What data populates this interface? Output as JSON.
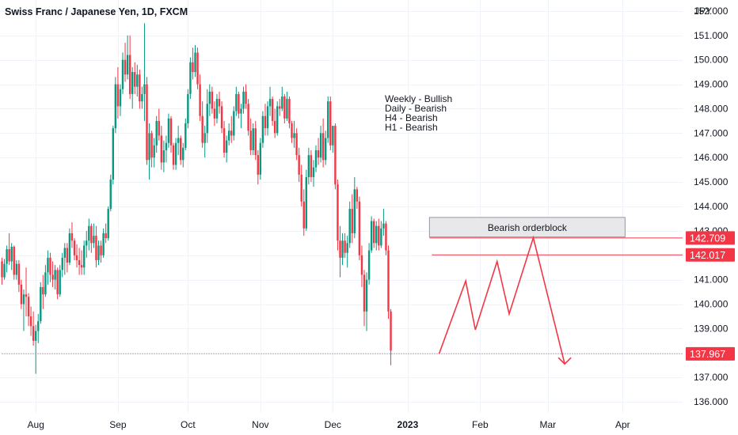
{
  "header": {
    "title": "Swiss Franc / Japanese Yen, 1D, FXCM"
  },
  "chart_data": {
    "type": "candlestick",
    "ylabel": "JPY",
    "ylim": [
      135.55,
      152.45
    ],
    "y_ticks": [
      "152.000",
      "151.000",
      "150.000",
      "149.000",
      "148.000",
      "147.000",
      "146.000",
      "145.000",
      "144.000",
      "143.000",
      "142.000",
      "141.000",
      "140.000",
      "139.000",
      "138.000",
      "137.000",
      "136.000"
    ],
    "x_ticks": [
      {
        "label": "Aug",
        "bar": 14,
        "bold": false
      },
      {
        "label": "Sep",
        "bar": 48,
        "bold": false
      },
      {
        "label": "Oct",
        "bar": 77,
        "bold": false
      },
      {
        "label": "Nov",
        "bar": 107,
        "bold": false
      },
      {
        "label": "Dec",
        "bar": 137,
        "bold": false
      },
      {
        "label": "2023",
        "bar": 168,
        "bold": true
      },
      {
        "label": "Feb",
        "bar": 198,
        "bold": false
      },
      {
        "label": "Mar",
        "bar": 226,
        "bold": false
      },
      {
        "label": "Apr",
        "bar": 257,
        "bold": false
      }
    ],
    "annotations": [
      "Weekly - Bullish",
      "Daily - Bearish",
      "H4 - Bearish",
      "H1 - Bearish"
    ],
    "zone": {
      "label": "Bearish orderblock",
      "top": 143.55,
      "bottom": 142.75,
      "from_bar": 177,
      "to_bar": 258
    },
    "levels": [
      {
        "label": "142.709",
        "value": 142.709,
        "from_bar": 177,
        "style": "solid"
      },
      {
        "label": "142.017",
        "value": 142.017,
        "from_bar": 178,
        "style": "solid"
      },
      {
        "label": "137.967",
        "value": 137.967,
        "from_bar": 0,
        "style": "dotted"
      }
    ],
    "projection": [
      [
        181,
        137.97
      ],
      [
        192,
        140.95
      ],
      [
        196,
        138.95
      ],
      [
        205,
        141.75
      ],
      [
        210,
        139.6
      ],
      [
        220,
        142.72
      ],
      [
        233,
        137.55
      ]
    ],
    "colors": {
      "up": "#089981",
      "down": "#f23645",
      "grid": "#f0f3fa",
      "text": "#131722"
    },
    "candles": [
      [
        141.75,
        141.9,
        140.8,
        141.1
      ],
      [
        141.1,
        141.85,
        141.0,
        141.65
      ],
      [
        141.65,
        142.4,
        141.3,
        142.25
      ],
      [
        142.25,
        142.9,
        141.6,
        141.75
      ],
      [
        141.75,
        142.5,
        141.4,
        142.35
      ],
      [
        142.35,
        142.4,
        141.0,
        141.2
      ],
      [
        141.2,
        141.8,
        141.0,
        141.65
      ],
      [
        141.65,
        141.8,
        140.5,
        140.8
      ],
      [
        140.8,
        141.0,
        139.8,
        140.0
      ],
      [
        140.0,
        140.6,
        138.9,
        140.4
      ],
      [
        140.4,
        141.5,
        139.5,
        140.3
      ],
      [
        140.3,
        140.45,
        139.1,
        139.5
      ],
      [
        139.5,
        139.9,
        138.7,
        139.1
      ],
      [
        139.1,
        139.7,
        138.3,
        138.5
      ],
      [
        138.5,
        139.15,
        137.15,
        138.9
      ],
      [
        138.9,
        139.6,
        138.4,
        139.3
      ],
      [
        139.3,
        140.9,
        139.2,
        140.7
      ],
      [
        140.7,
        141.2,
        139.8,
        140.4
      ],
      [
        140.4,
        141.6,
        140.3,
        141.3
      ],
      [
        141.3,
        142.2,
        140.8,
        141.9
      ],
      [
        141.9,
        142.1,
        140.9,
        141.2
      ],
      [
        141.2,
        141.75,
        140.7,
        141.0
      ],
      [
        141.0,
        141.6,
        140.6,
        141.4
      ],
      [
        141.4,
        141.5,
        140.2,
        140.4
      ],
      [
        140.4,
        141.6,
        140.3,
        141.4
      ],
      [
        141.4,
        142.1,
        141.1,
        141.9
      ],
      [
        141.9,
        142.5,
        141.2,
        142.3
      ],
      [
        142.3,
        142.5,
        141.3,
        141.7
      ],
      [
        141.7,
        143.1,
        141.6,
        142.9
      ],
      [
        142.9,
        143.35,
        142.3,
        142.6
      ],
      [
        142.6,
        142.7,
        141.8,
        142.0
      ],
      [
        142.0,
        142.45,
        141.5,
        141.8
      ],
      [
        141.8,
        142.3,
        141.2,
        141.6
      ],
      [
        141.6,
        142.2,
        141.2,
        141.5
      ],
      [
        141.5,
        142.6,
        141.2,
        142.4
      ],
      [
        142.4,
        143.0,
        141.9,
        142.6
      ],
      [
        142.6,
        143.5,
        142.2,
        143.2
      ],
      [
        143.2,
        143.3,
        142.1,
        142.5
      ],
      [
        142.5,
        143.3,
        142.3,
        142.8
      ],
      [
        142.8,
        143.2,
        141.5,
        141.8
      ],
      [
        141.8,
        142.6,
        141.6,
        142.4
      ],
      [
        142.4,
        142.6,
        141.7,
        142.0
      ],
      [
        142.0,
        143.1,
        141.9,
        142.9
      ],
      [
        142.9,
        143.3,
        142.5,
        142.7
      ],
      [
        142.7,
        144.0,
        142.6,
        143.9
      ],
      [
        143.9,
        145.3,
        143.8,
        145.1
      ],
      [
        145.1,
        147.3,
        144.9,
        147.2
      ],
      [
        147.2,
        149.3,
        147.0,
        149.0
      ],
      [
        149.0,
        149.7,
        147.6,
        148.1
      ],
      [
        148.1,
        149.0,
        147.7,
        148.8
      ],
      [
        148.8,
        150.3,
        148.6,
        150.0
      ],
      [
        150.0,
        150.7,
        149.1,
        149.4
      ],
      [
        149.4,
        151.0,
        149.2,
        150.2
      ],
      [
        150.2,
        151.0,
        148.4,
        148.6
      ],
      [
        148.6,
        149.7,
        148.0,
        149.5
      ],
      [
        149.5,
        149.9,
        148.6,
        148.9
      ],
      [
        148.9,
        149.8,
        148.5,
        149.4
      ],
      [
        149.4,
        149.6,
        148.0,
        148.3
      ],
      [
        148.3,
        148.9,
        148.0,
        148.6
      ],
      [
        148.6,
        151.5,
        147.5,
        149.0
      ],
      [
        149.0,
        149.3,
        145.7,
        145.9
      ],
      [
        145.9,
        147.4,
        145.1,
        147.0
      ],
      [
        147.0,
        147.1,
        145.6,
        146.0
      ],
      [
        146.0,
        146.8,
        145.6,
        146.5
      ],
      [
        146.5,
        147.7,
        146.2,
        147.5
      ],
      [
        147.5,
        148.0,
        146.7,
        146.9
      ],
      [
        146.9,
        147.3,
        145.5,
        145.8
      ],
      [
        145.8,
        146.7,
        145.4,
        146.3
      ],
      [
        146.3,
        146.9,
        145.8,
        146.6
      ],
      [
        146.6,
        147.8,
        146.4,
        147.6
      ],
      [
        147.6,
        147.7,
        146.2,
        146.5
      ],
      [
        146.5,
        146.6,
        145.5,
        145.7
      ],
      [
        145.7,
        146.8,
        145.5,
        146.6
      ],
      [
        146.6,
        147.3,
        146.1,
        146.8
      ],
      [
        146.8,
        146.9,
        145.7,
        145.9
      ],
      [
        145.9,
        146.6,
        145.6,
        146.4
      ],
      [
        146.4,
        147.6,
        146.3,
        147.4
      ],
      [
        147.4,
        148.8,
        147.2,
        148.6
      ],
      [
        148.6,
        150.1,
        148.4,
        149.9
      ],
      [
        149.9,
        150.5,
        149.2,
        149.5
      ],
      [
        149.5,
        150.6,
        149.3,
        150.3
      ],
      [
        150.3,
        150.5,
        148.8,
        149.0
      ],
      [
        149.0,
        149.4,
        147.5,
        147.7
      ],
      [
        147.7,
        148.3,
        146.4,
        146.6
      ],
      [
        146.6,
        147.3,
        146.0,
        147.0
      ],
      [
        147.0,
        148.8,
        146.6,
        148.2
      ],
      [
        148.2,
        149.0,
        147.7,
        148.7
      ],
      [
        148.7,
        148.9,
        147.8,
        148.0
      ],
      [
        148.0,
        148.3,
        147.3,
        147.6
      ],
      [
        147.6,
        148.6,
        147.4,
        148.4
      ],
      [
        148.4,
        148.7,
        147.8,
        148.1
      ],
      [
        148.1,
        148.3,
        147.0,
        147.2
      ],
      [
        147.2,
        147.5,
        146.0,
        146.2
      ],
      [
        146.2,
        146.9,
        145.8,
        146.7
      ],
      [
        146.7,
        147.4,
        146.5,
        147.1
      ],
      [
        147.1,
        147.7,
        146.6,
        146.9
      ],
      [
        146.9,
        148.1,
        146.7,
        147.9
      ],
      [
        147.9,
        148.9,
        147.7,
        148.6
      ],
      [
        148.6,
        148.7,
        147.6,
        147.8
      ],
      [
        147.8,
        148.2,
        147.2,
        148.0
      ],
      [
        148.0,
        148.9,
        147.8,
        148.7
      ],
      [
        148.7,
        149.0,
        148.0,
        148.2
      ],
      [
        148.2,
        148.4,
        146.9,
        147.1
      ],
      [
        147.1,
        147.6,
        146.1,
        146.3
      ],
      [
        146.3,
        147.4,
        146.1,
        147.2
      ],
      [
        147.2,
        147.5,
        145.9,
        146.1
      ],
      [
        146.1,
        146.3,
        144.9,
        145.3
      ],
      [
        145.3,
        146.8,
        145.1,
        146.6
      ],
      [
        146.6,
        147.9,
        146.4,
        147.7
      ],
      [
        147.7,
        148.2,
        146.9,
        147.2
      ],
      [
        147.2,
        148.3,
        146.9,
        148.1
      ],
      [
        148.1,
        148.9,
        147.7,
        148.4
      ],
      [
        148.4,
        148.5,
        147.3,
        147.5
      ],
      [
        147.5,
        148.0,
        146.8,
        147.0
      ],
      [
        147.0,
        148.3,
        146.9,
        148.1
      ],
      [
        148.1,
        148.4,
        147.7,
        148.0
      ],
      [
        148.0,
        148.9,
        147.9,
        148.5
      ],
      [
        148.5,
        148.6,
        147.4,
        147.6
      ],
      [
        147.6,
        148.7,
        147.5,
        148.4
      ],
      [
        148.4,
        148.5,
        147.2,
        147.4
      ],
      [
        147.4,
        147.5,
        146.6,
        146.8
      ],
      [
        146.8,
        147.5,
        146.4,
        147.0
      ],
      [
        147.0,
        147.2,
        145.9,
        146.1
      ],
      [
        146.1,
        146.4,
        145.0,
        145.3
      ],
      [
        145.3,
        145.7,
        144.0,
        144.2
      ],
      [
        144.2,
        144.7,
        142.8,
        143.1
      ],
      [
        143.1,
        145.5,
        143.0,
        145.2
      ],
      [
        145.2,
        146.4,
        144.9,
        146.1
      ],
      [
        146.1,
        146.3,
        145.0,
        145.2
      ],
      [
        145.2,
        145.9,
        144.8,
        145.6
      ],
      [
        145.6,
        146.5,
        145.4,
        146.3
      ],
      [
        146.3,
        146.8,
        145.7,
        146.0
      ],
      [
        146.0,
        147.3,
        145.8,
        147.0
      ],
      [
        147.0,
        147.6,
        145.6,
        145.9
      ],
      [
        145.9,
        147.1,
        145.7,
        146.8
      ],
      [
        146.8,
        148.5,
        146.6,
        148.3
      ],
      [
        148.3,
        148.5,
        146.3,
        146.5
      ],
      [
        146.5,
        147.3,
        146.2,
        147.3
      ],
      [
        147.3,
        147.4,
        144.7,
        144.9
      ],
      [
        144.9,
        145.1,
        142.2,
        142.6
      ],
      [
        142.6,
        143.2,
        141.1,
        141.9
      ],
      [
        141.9,
        142.9,
        141.6,
        142.6
      ],
      [
        142.6,
        142.9,
        141.9,
        142.1
      ],
      [
        142.1,
        142.8,
        141.5,
        142.5
      ],
      [
        142.5,
        144.2,
        142.3,
        143.9
      ],
      [
        143.9,
        144.5,
        142.5,
        142.9
      ],
      [
        142.9,
        145.2,
        142.7,
        144.7
      ],
      [
        144.7,
        144.8,
        143.9,
        144.2
      ],
      [
        144.2,
        144.4,
        141.8,
        142.0
      ],
      [
        142.0,
        142.4,
        140.7,
        141.2
      ],
      [
        141.2,
        141.4,
        139.1,
        139.7
      ],
      [
        139.7,
        141.3,
        138.9,
        141.0
      ],
      [
        141.0,
        142.5,
        140.8,
        142.2
      ],
      [
        142.2,
        143.6,
        142.1,
        143.4
      ],
      [
        143.4,
        143.5,
        142.3,
        142.5
      ],
      [
        142.5,
        143.4,
        142.2,
        143.2
      ],
      [
        143.2,
        143.5,
        142.2,
        142.4
      ],
      [
        142.4,
        143.4,
        142.3,
        143.1
      ],
      [
        143.1,
        143.9,
        142.8,
        143.3
      ],
      [
        143.3,
        143.4,
        142.0,
        142.2
      ],
      [
        142.2,
        142.4,
        139.4,
        139.7
      ],
      [
        139.7,
        139.8,
        137.5,
        138.1
      ]
    ]
  }
}
